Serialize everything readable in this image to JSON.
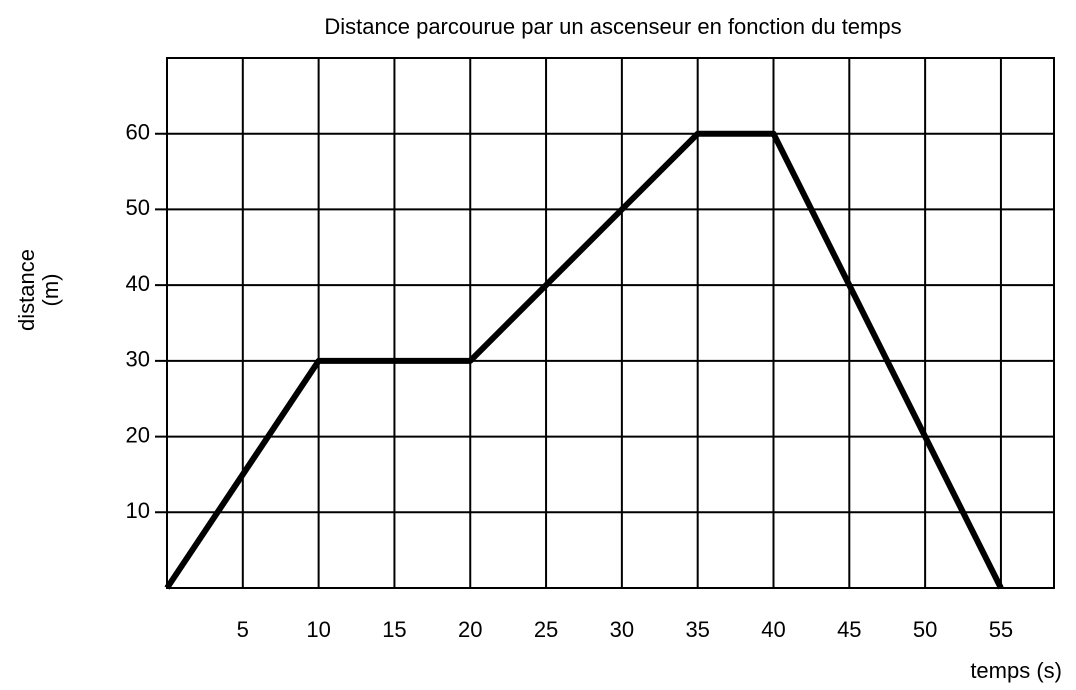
{
  "chart_data": {
    "type": "line",
    "title": "Distance parcourue par un ascenseur en fonction du temps",
    "xlabel": "temps (s)",
    "ylabel": "distance (m)",
    "x": [
      0,
      10,
      20,
      35,
      40,
      55
    ],
    "series": [
      {
        "name": "distance",
        "color": "#000000",
        "values": [
          0,
          30,
          30,
          60,
          60,
          0
        ]
      }
    ],
    "xlim": [
      0,
      58.5
    ],
    "ylim": [
      0,
      70
    ],
    "xticks": [
      5,
      10,
      15,
      20,
      25,
      30,
      35,
      40,
      45,
      50,
      55
    ],
    "yticks": [
      10,
      20,
      30,
      40,
      50,
      60
    ],
    "grid": true
  }
}
